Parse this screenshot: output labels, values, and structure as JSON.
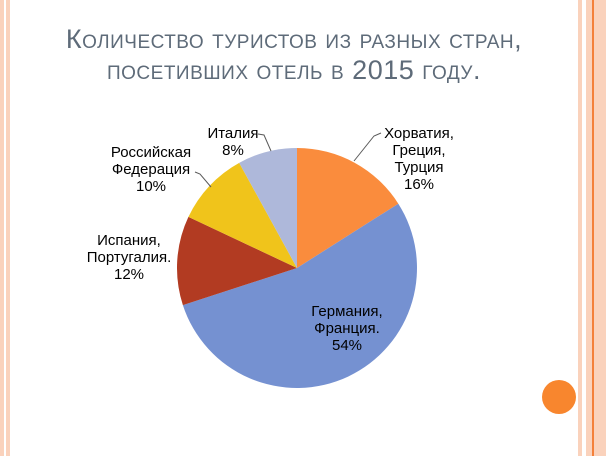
{
  "theme": {
    "background": "#FFFFFF",
    "stripe_light": "#FAD2BC",
    "stripe_accent": "#F4803A",
    "corner_circle": "#F8862E",
    "title_color": "#5E6B79",
    "label_color": "#000000",
    "leader_line_color": "#5A5A5A"
  },
  "title": {
    "text": "Количество туристов из разных стран, посетивших отель в 2015 году.",
    "line1": "Количество туристов из разных стран,",
    "line2": "посетивших отель в 2015 году."
  },
  "chart_data": {
    "type": "pie",
    "title": "Количество туристов из разных стран, посетивших отель в 2015 году.",
    "start_angle_deg": 0,
    "direction": "clockwise",
    "total_pct": 100,
    "legend_position": "none",
    "slices": [
      {
        "label": "Хорватия, Греция, Турция",
        "pct": 16,
        "color": "#FA8C3D",
        "display": "Хорватия,\nГреция,\nТурция\n16%"
      },
      {
        "label": "Германия, Франция.",
        "pct": 54,
        "color": "#7591D1",
        "display": "Германия,\nФранция.\n54%"
      },
      {
        "label": "Испания, Португалия.",
        "pct": 12,
        "color": "#B23B22",
        "display": "Испания,\nПортугалия.\n12%"
      },
      {
        "label": "Российская Федерация",
        "pct": 10,
        "color": "#F0C41B",
        "display": "Российская\nФедерация\n10%"
      },
      {
        "label": "Италия",
        "pct": 8,
        "color": "#AEB8DA",
        "display": "Италия\n8%"
      }
    ]
  }
}
